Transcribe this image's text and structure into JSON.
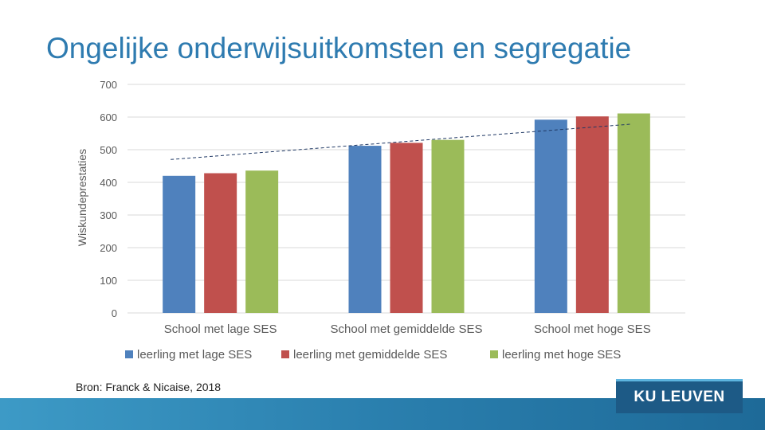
{
  "slide": {
    "title": "Ongelijke onderwijsuitkomsten en segregatie",
    "source": "Bron: Franck & Nicaise, 2018",
    "logo_text": "KU LEUVEN"
  },
  "chart_data": {
    "type": "bar",
    "title": "",
    "xlabel": "",
    "ylabel": "Wiskundeprestaties",
    "ylim": [
      0,
      700
    ],
    "yticks": [
      0,
      100,
      200,
      300,
      400,
      500,
      600,
      700
    ],
    "grid": true,
    "legend": "bottom",
    "categories": [
      "School met lage SES",
      "School met gemiddelde SES",
      "School met hoge SES"
    ],
    "series": [
      {
        "name": "leerling met lage SES",
        "color": "#4f81bd",
        "values": [
          420,
          512,
          592
        ]
      },
      {
        "name": "leerling met gemiddelde SES",
        "color": "#c0504d",
        "values": [
          428,
          521,
          602
        ]
      },
      {
        "name": "leerling met hoge SES",
        "color": "#9bbb59",
        "values": [
          436,
          530,
          611
        ]
      }
    ],
    "trendline": {
      "style": "dashed",
      "color": "#1f3864",
      "values": [
        470,
        578
      ]
    }
  }
}
